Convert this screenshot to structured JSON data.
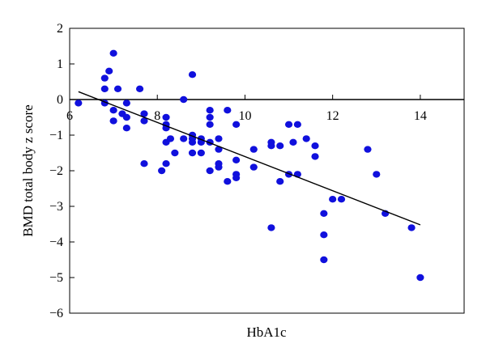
{
  "chart_data": {
    "type": "scatter",
    "title": "",
    "xlabel": "HbA1c",
    "ylabel": "BMD total body z score",
    "xlim": [
      6,
      15
    ],
    "ylim": [
      -6,
      2
    ],
    "x_ticks": [
      6,
      8,
      10,
      12,
      14
    ],
    "y_ticks": [
      2,
      1,
      0,
      -1,
      -2,
      -3,
      -4,
      -5,
      -6
    ],
    "x_tick_labels": [
      "6",
      "8",
      "10",
      "12",
      "14"
    ],
    "y_tick_labels": [
      "2",
      "1",
      "0",
      "−1",
      "−2",
      "−3",
      "−4",
      "−5",
      "−6"
    ],
    "grid": false,
    "legend": "none",
    "point_color": "#1010dd",
    "points": [
      [
        6.2,
        -0.1
      ],
      [
        6.8,
        0.6
      ],
      [
        6.9,
        0.8
      ],
      [
        7.0,
        1.3
      ],
      [
        6.8,
        0.3
      ],
      [
        7.1,
        0.3
      ],
      [
        6.8,
        -0.1
      ],
      [
        7.0,
        -0.3
      ],
      [
        7.0,
        -0.6
      ],
      [
        7.2,
        -0.4
      ],
      [
        7.3,
        -0.1
      ],
      [
        7.3,
        -0.5
      ],
      [
        7.3,
        -0.8
      ],
      [
        7.6,
        0.3
      ],
      [
        7.7,
        -0.4
      ],
      [
        7.7,
        -0.6
      ],
      [
        7.7,
        -1.8
      ],
      [
        8.1,
        -2.0
      ],
      [
        8.2,
        -0.7
      ],
      [
        8.2,
        -0.5
      ],
      [
        8.2,
        -0.8
      ],
      [
        8.2,
        -1.2
      ],
      [
        8.2,
        -1.8
      ],
      [
        8.3,
        -1.1
      ],
      [
        8.4,
        -1.5
      ],
      [
        8.6,
        0.0
      ],
      [
        8.6,
        -1.1
      ],
      [
        8.8,
        0.7
      ],
      [
        8.8,
        -1.0
      ],
      [
        8.8,
        -1.1
      ],
      [
        8.8,
        -1.2
      ],
      [
        8.8,
        -1.5
      ],
      [
        9.0,
        -1.1
      ],
      [
        9.0,
        -1.2
      ],
      [
        9.0,
        -1.5
      ],
      [
        9.2,
        -0.3
      ],
      [
        9.2,
        -0.5
      ],
      [
        9.2,
        -0.7
      ],
      [
        9.2,
        -1.2
      ],
      [
        9.2,
        -2.0
      ],
      [
        9.4,
        -1.1
      ],
      [
        9.4,
        -1.4
      ],
      [
        9.4,
        -1.8
      ],
      [
        9.4,
        -1.9
      ],
      [
        9.6,
        -0.3
      ],
      [
        9.6,
        -2.3
      ],
      [
        9.8,
        -0.7
      ],
      [
        9.8,
        -1.7
      ],
      [
        9.8,
        -2.1
      ],
      [
        9.8,
        -2.2
      ],
      [
        10.2,
        -1.4
      ],
      [
        10.2,
        -1.9
      ],
      [
        10.6,
        -1.2
      ],
      [
        10.6,
        -1.3
      ],
      [
        10.6,
        -3.6
      ],
      [
        10.8,
        -1.3
      ],
      [
        10.8,
        -2.3
      ],
      [
        11.0,
        -0.7
      ],
      [
        11.0,
        -2.1
      ],
      [
        11.1,
        -1.2
      ],
      [
        11.2,
        -0.7
      ],
      [
        11.2,
        -2.1
      ],
      [
        11.4,
        -1.1
      ],
      [
        11.6,
        -1.3
      ],
      [
        11.6,
        -1.6
      ],
      [
        11.8,
        -3.2
      ],
      [
        11.8,
        -3.8
      ],
      [
        11.8,
        -4.5
      ],
      [
        12.0,
        -2.8
      ],
      [
        12.2,
        -2.8
      ],
      [
        12.8,
        -1.4
      ],
      [
        13.0,
        -2.1
      ],
      [
        13.2,
        -3.2
      ],
      [
        13.8,
        -3.6
      ],
      [
        14.0,
        -5.0
      ]
    ],
    "regression_line": {
      "x": [
        6.2,
        14.0
      ],
      "y": [
        0.22,
        -3.52
      ]
    }
  }
}
